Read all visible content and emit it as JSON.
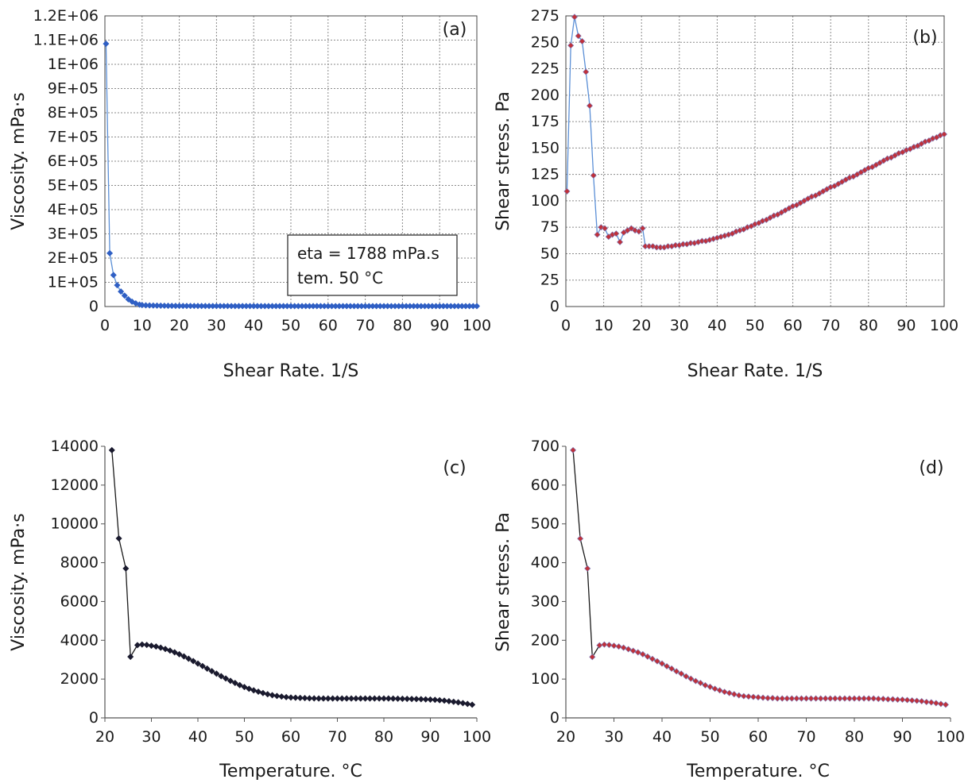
{
  "chart_data": [
    {
      "panel_label": "(a)",
      "type": "line",
      "xlabel": "Shear Rate. 1/S",
      "ylabel": "Viscosity. mPa·s",
      "xlim": [
        0,
        100
      ],
      "ylim": [
        0,
        1200000
      ],
      "xticks": [
        0,
        10,
        20,
        30,
        40,
        50,
        60,
        70,
        80,
        90,
        100
      ],
      "yticks": [
        0,
        100000,
        200000,
        300000,
        400000,
        500000,
        600000,
        700000,
        800000,
        900000,
        1000000,
        1100000,
        1200000
      ],
      "ytick_labels": [
        "0",
        "1E+05",
        "2E+05",
        "3E+05",
        "4E+05",
        "5E+05",
        "6E+05",
        "7E+05",
        "8E+05",
        "9E+05",
        "1E+06",
        "1.1E+06",
        "1.2E+06"
      ],
      "grid": true,
      "annotation_lines": [
        "eta = 1788 mPa.s",
        "tem. 50 °C"
      ],
      "colors": {
        "line": "#5b8fd6",
        "marker": "#2f5fc4",
        "marker_stroke": "#2f5fc4"
      },
      "marker": "diamond",
      "series": [
        {
          "x": [
            0.3,
            1.3,
            2.3,
            3.3,
            4.3,
            5.3,
            6.3,
            7.3,
            8.3,
            9.3,
            10,
            11,
            12,
            13,
            14,
            15,
            16,
            17,
            18,
            19,
            20,
            21,
            22,
            23,
            24,
            25,
            26,
            27,
            28,
            29,
            30,
            31,
            32,
            33,
            34,
            35,
            36,
            37,
            38,
            39,
            40,
            41,
            42,
            43,
            44,
            45,
            46,
            47,
            48,
            49,
            50,
            51,
            52,
            53,
            54,
            55,
            56,
            57,
            58,
            59,
            60,
            61,
            62,
            63,
            64,
            65,
            66,
            67,
            68,
            69,
            70,
            71,
            72,
            73,
            74,
            75,
            76,
            77,
            78,
            79,
            80,
            81,
            82,
            83,
            84,
            85,
            86,
            87,
            88,
            89,
            90,
            91,
            92,
            93,
            94,
            95,
            96,
            97,
            98,
            99,
            100
          ],
          "y": [
            1085000,
            220000,
            130000,
            88000,
            62000,
            45000,
            30000,
            20000,
            13000,
            8000,
            6000,
            5000,
            4500,
            4000,
            3800,
            3500,
            3200,
            3000,
            2800,
            2700,
            2600,
            2500,
            2450,
            2400,
            2350,
            2300,
            2250,
            2200,
            2150,
            2100,
            2050,
            2000,
            1980,
            1960,
            1940,
            1920,
            1900,
            1890,
            1880,
            1870,
            1860,
            1850,
            1840,
            1830,
            1820,
            1810,
            1800,
            1795,
            1792,
            1790,
            1788,
            1785,
            1782,
            1780,
            1778,
            1775,
            1772,
            1770,
            1768,
            1765,
            1762,
            1760,
            1758,
            1756,
            1754,
            1752,
            1750,
            1748,
            1746,
            1744,
            1742,
            1740,
            1738,
            1736,
            1734,
            1732,
            1730,
            1728,
            1726,
            1724,
            1722,
            1720,
            1718,
            1716,
            1714,
            1712,
            1710,
            1708,
            1706,
            1704,
            1702,
            1700,
            1698,
            1696,
            1694,
            1692,
            1690,
            1688,
            1686,
            1684,
            1682
          ]
        }
      ]
    },
    {
      "panel_label": "(b)",
      "type": "line",
      "xlabel": "Shear Rate. 1/S",
      "ylabel": "Shear stress. Pa",
      "xlim": [
        0,
        100
      ],
      "ylim": [
        0,
        275
      ],
      "xticks": [
        0,
        10,
        20,
        30,
        40,
        50,
        60,
        70,
        80,
        90,
        100
      ],
      "yticks": [
        0,
        25,
        50,
        75,
        100,
        125,
        150,
        175,
        200,
        225,
        250,
        275
      ],
      "ytick_labels": [
        "0",
        "25",
        "50",
        "75",
        "100",
        "125",
        "150",
        "175",
        "200",
        "225",
        "250",
        "275"
      ],
      "grid": true,
      "colors": {
        "line": "#5b8fd6",
        "marker": "#c0313a",
        "marker_stroke": "#7a7fc0"
      },
      "marker": "diamond",
      "series": [
        {
          "x": [
            0.3,
            1.3,
            2.3,
            3.3,
            4.3,
            5.3,
            6.3,
            7.3,
            8.3,
            9.3,
            10.3,
            11.3,
            12.3,
            13.3,
            14.3,
            15.3,
            16.3,
            17.3,
            18.3,
            19.3,
            20.3,
            21,
            22,
            23,
            24,
            25,
            26,
            27,
            28,
            29,
            30,
            31,
            32,
            33,
            34,
            35,
            36,
            37,
            38,
            39,
            40,
            41,
            42,
            43,
            44,
            45,
            46,
            47,
            48,
            49,
            50,
            51,
            52,
            53,
            54,
            55,
            56,
            57,
            58,
            59,
            60,
            61,
            62,
            63,
            64,
            65,
            66,
            67,
            68,
            69,
            70,
            71,
            72,
            73,
            74,
            75,
            76,
            77,
            78,
            79,
            80,
            81,
            82,
            83,
            84,
            85,
            86,
            87,
            88,
            89,
            90,
            91,
            92,
            93,
            94,
            95,
            96,
            97,
            98,
            99,
            100
          ],
          "y": [
            109,
            247,
            274,
            256,
            251,
            222,
            190,
            124,
            68,
            75,
            74,
            66,
            68,
            69,
            61,
            70,
            72,
            74,
            72,
            71,
            74,
            57,
            57,
            57,
            56,
            56,
            56,
            57,
            57,
            58,
            58,
            59,
            59,
            60,
            60,
            61,
            62,
            62,
            63,
            64,
            65,
            66,
            67,
            68,
            69,
            71,
            72,
            73,
            75,
            76,
            78,
            79,
            81,
            82,
            84,
            86,
            87,
            89,
            91,
            93,
            95,
            96,
            98,
            100,
            102,
            104,
            105,
            107,
            109,
            111,
            113,
            114,
            116,
            118,
            120,
            122,
            123,
            125,
            127,
            129,
            131,
            132,
            134,
            136,
            138,
            140,
            141,
            143,
            145,
            146,
            148,
            149,
            151,
            152,
            154,
            156,
            157,
            159,
            160,
            162,
            163
          ]
        }
      ]
    },
    {
      "panel_label": "(c)",
      "type": "line",
      "xlabel": "Temperature. °C",
      "ylabel": "Viscosity. mPa·s",
      "xlim": [
        20,
        100
      ],
      "ylim": [
        0,
        14000
      ],
      "xticks": [
        20,
        30,
        40,
        50,
        60,
        70,
        80,
        90,
        100
      ],
      "yticks": [
        0,
        2000,
        4000,
        6000,
        8000,
        10000,
        12000,
        14000
      ],
      "ytick_labels": [
        "0",
        "2000",
        "4000",
        "6000",
        "8000",
        "10000",
        "12000",
        "14000"
      ],
      "grid": false,
      "colors": {
        "line": "#1a1a1a",
        "marker": "#1a1a2e",
        "marker_stroke": "#1a1a2e"
      },
      "marker": "diamond",
      "series": [
        {
          "x": [
            21.5,
            23,
            24.5,
            25.5,
            27,
            28,
            29,
            30,
            31,
            32,
            33,
            34,
            35,
            36,
            37,
            38,
            39,
            40,
            41,
            42,
            43,
            44,
            45,
            46,
            47,
            48,
            49,
            50,
            51,
            52,
            53,
            54,
            55,
            56,
            57,
            58,
            59,
            60,
            61,
            62,
            63,
            64,
            65,
            66,
            67,
            68,
            69,
            70,
            71,
            72,
            73,
            74,
            75,
            76,
            77,
            78,
            79,
            80,
            81,
            82,
            83,
            84,
            85,
            86,
            87,
            88,
            89,
            90,
            91,
            92,
            93,
            94,
            95,
            96,
            97,
            98,
            99
          ],
          "y": [
            13800,
            9250,
            7700,
            3150,
            3750,
            3780,
            3760,
            3720,
            3680,
            3620,
            3550,
            3470,
            3380,
            3280,
            3170,
            3050,
            2930,
            2800,
            2670,
            2540,
            2410,
            2280,
            2150,
            2030,
            1910,
            1800,
            1690,
            1590,
            1500,
            1420,
            1350,
            1280,
            1220,
            1170,
            1130,
            1100,
            1070,
            1050,
            1040,
            1030,
            1020,
            1010,
            1005,
            1000,
            1000,
            1000,
            1000,
            1000,
            1000,
            1000,
            1000,
            1000,
            1000,
            1000,
            1000,
            1000,
            1000,
            1000,
            1000,
            995,
            990,
            985,
            980,
            975,
            970,
            965,
            955,
            945,
            930,
            910,
            890,
            860,
            830,
            800,
            760,
            720,
            680
          ]
        }
      ]
    },
    {
      "panel_label": "(d)",
      "type": "line",
      "xlabel": "Temperature. °C",
      "ylabel": "Shear stress. Pa",
      "xlim": [
        20,
        100
      ],
      "ylim": [
        0,
        700
      ],
      "xticks": [
        20,
        30,
        40,
        50,
        60,
        70,
        80,
        90,
        100
      ],
      "yticks": [
        0,
        100,
        200,
        300,
        400,
        500,
        600,
        700
      ],
      "ytick_labels": [
        "0",
        "100",
        "200",
        "300",
        "400",
        "500",
        "600",
        "700"
      ],
      "grid": false,
      "colors": {
        "line": "#1a1a1a",
        "marker": "#c0313a",
        "marker_stroke": "#7a7fc0"
      },
      "marker": "diamond",
      "series": [
        {
          "x": [
            21.5,
            23,
            24.5,
            25.5,
            27,
            28,
            29,
            30,
            31,
            32,
            33,
            34,
            35,
            36,
            37,
            38,
            39,
            40,
            41,
            42,
            43,
            44,
            45,
            46,
            47,
            48,
            49,
            50,
            51,
            52,
            53,
            54,
            55,
            56,
            57,
            58,
            59,
            60,
            61,
            62,
            63,
            64,
            65,
            66,
            67,
            68,
            69,
            70,
            71,
            72,
            73,
            74,
            75,
            76,
            77,
            78,
            79,
            80,
            81,
            82,
            83,
            84,
            85,
            86,
            87,
            88,
            89,
            90,
            91,
            92,
            93,
            94,
            95,
            96,
            97,
            98,
            99
          ],
          "y": [
            690,
            462,
            385,
            157,
            187,
            189,
            188,
            186,
            184,
            181,
            177,
            173,
            169,
            164,
            158,
            152,
            146,
            140,
            133,
            127,
            120,
            114,
            107,
            101,
            95,
            90,
            84,
            80,
            75,
            71,
            67,
            64,
            61,
            58,
            56,
            55,
            54,
            53,
            52,
            51,
            51,
            50,
            50,
            50,
            50,
            50,
            50,
            50,
            50,
            50,
            50,
            50,
            50,
            50,
            50,
            50,
            50,
            50,
            50,
            50,
            50,
            50,
            49,
            49,
            48,
            48,
            47,
            47,
            46,
            45,
            44,
            43,
            41,
            40,
            38,
            36,
            34
          ]
        }
      ]
    }
  ]
}
